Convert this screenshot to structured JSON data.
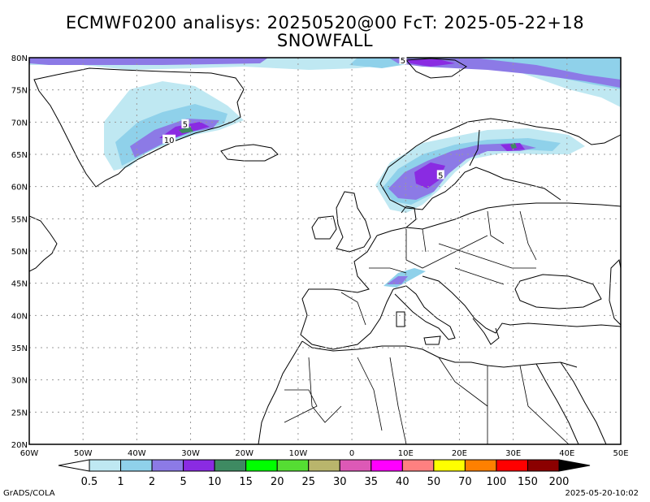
{
  "title_line1": "ECMWF0200 analisys: 20250520@00 FcT: 2025-05-22+18",
  "title_line2": "SNOWFALL",
  "lat_labels": [
    "20N",
    "25N",
    "30N",
    "35N",
    "40N",
    "45N",
    "50N",
    "55N",
    "60N",
    "65N",
    "70N",
    "75N",
    "80N"
  ],
  "lon_labels": [
    "60W",
    "50W",
    "40W",
    "30W",
    "20W",
    "10W",
    "0",
    "10E",
    "20E",
    "30E",
    "40E",
    "50E"
  ],
  "lat_range": [
    20,
    80
  ],
  "lon_range": [
    -60,
    50
  ],
  "grid": "dotted, every 5 degrees latitude and 10 degrees longitude",
  "contour_labels": [
    {
      "text": "5",
      "lon": 9.5,
      "lat": 79.6
    },
    {
      "text": "5",
      "lon": -31,
      "lat": 69.7
    },
    {
      "text": "10",
      "lon": -34,
      "lat": 67.3
    },
    {
      "text": "5",
      "lon": 16.5,
      "lat": 61.8
    }
  ],
  "colorbar": {
    "labels": [
      "0.5",
      "1",
      "2",
      "5",
      "10",
      "15",
      "20",
      "25",
      "30",
      "35",
      "40",
      "50",
      "70",
      "100",
      "150",
      "200"
    ],
    "colors": [
      "#bfe8f2",
      "#8fd1ea",
      "#8c7ae6",
      "#8a2be2",
      "#3e8a62",
      "#00ff00",
      "#55dd33",
      "#b9b56c",
      "#dd59b6",
      "#ff00ff",
      "#ff8080",
      "#ffff00",
      "#ff8000",
      "#ff0000",
      "#8b0000"
    ],
    "under_color": "#ffffff",
    "over_color": "#000000"
  },
  "footer_left": "GrADS/COLA",
  "footer_right": "2025-05-20-10:02"
}
